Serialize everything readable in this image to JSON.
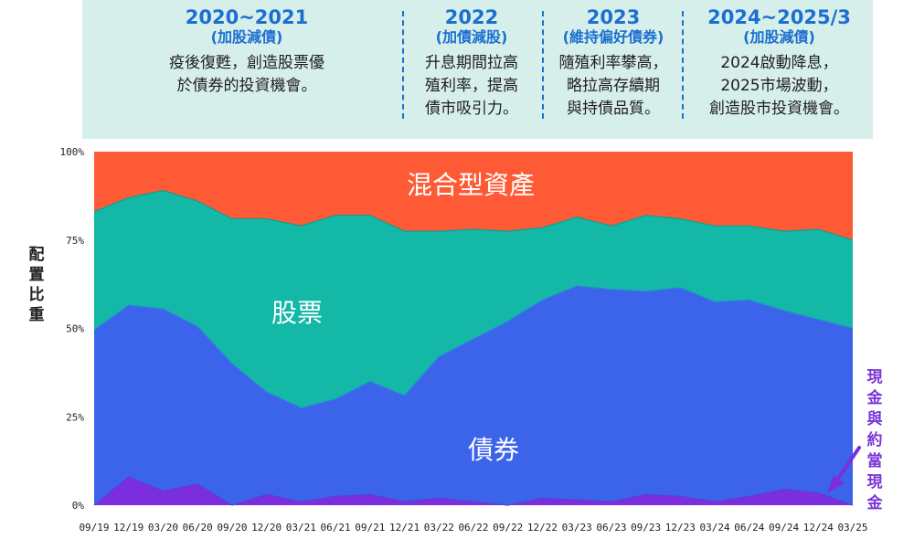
{
  "panel": {
    "columns": [
      {
        "period": "2020~2021",
        "action": "(加股減債)",
        "desc": [
          "疫後復甦，創造股票優",
          "於債券的投資機會。"
        ]
      },
      {
        "period": "2022",
        "action": "(加債減股)",
        "desc": [
          "升息期間拉高",
          "殖利率，提高",
          "債市吸引力。"
        ]
      },
      {
        "period": "2023",
        "action": "(維持偏好債券)",
        "desc": [
          "隨殖利率攀高，",
          "略拉高存續期",
          "與持債品質。"
        ]
      },
      {
        "period": "2024~2025/3",
        "action": "(加股減債)",
        "desc": [
          "2024啟動降息，",
          "2025市場波動，",
          "創造股市投資機會。"
        ]
      }
    ]
  },
  "y_axis_label": "配置比重",
  "cash_note": "現金與約當現金",
  "colors": {
    "cash": "#7a2ee0",
    "bonds": "#3b64ea",
    "stocks": "#14b8a6",
    "mixed": "#ff5a36",
    "panel": "#d7efea",
    "accent": "#1b6fd0"
  },
  "chart_data": {
    "type": "area",
    "stacked": true,
    "categories": [
      "09/19",
      "12/19",
      "03/20",
      "06/20",
      "09/20",
      "12/20",
      "03/21",
      "06/21",
      "09/21",
      "12/21",
      "03/22",
      "06/22",
      "09/22",
      "12/22",
      "03/23",
      "06/23",
      "09/23",
      "12/23",
      "03/24",
      "06/24",
      "09/24",
      "12/24",
      "03/25"
    ],
    "series": [
      {
        "name": "現金與約當現金",
        "values": [
          0,
          8,
          4,
          6,
          0,
          3,
          1,
          2.5,
          3,
          1,
          2,
          1,
          0,
          2,
          1.5,
          1,
          3,
          2.5,
          1,
          2.5,
          4.5,
          3.5,
          0
        ]
      },
      {
        "name": "債券",
        "values": [
          49.5,
          48.5,
          51.5,
          44.5,
          40,
          29,
          26.5,
          27.5,
          32,
          30,
          40,
          46,
          52,
          56,
          60.5,
          60,
          57.5,
          59,
          56.5,
          55.5,
          50.5,
          49,
          50
        ]
      },
      {
        "name": "股票",
        "values": [
          33.5,
          30.5,
          33.5,
          35.5,
          41,
          49,
          51.5,
          52,
          47,
          46.5,
          35.5,
          31,
          25.5,
          20.5,
          19.5,
          18,
          21.5,
          19.5,
          21.5,
          21,
          22.5,
          25.5,
          25
        ]
      },
      {
        "name": "混合型資產",
        "values": [
          17,
          13,
          11,
          14,
          19,
          19,
          21,
          18,
          18,
          22.5,
          22.5,
          22,
          22.5,
          21.5,
          18.5,
          21,
          18,
          19,
          21,
          21,
          22.5,
          22,
          25
        ]
      }
    ],
    "series_labels": {
      "mixed": "混合型資產",
      "stocks": "股票",
      "bonds": "債券"
    },
    "yticks": [
      "0%",
      "25%",
      "50%",
      "75%",
      "100%"
    ],
    "ylim": [
      0,
      100
    ]
  }
}
